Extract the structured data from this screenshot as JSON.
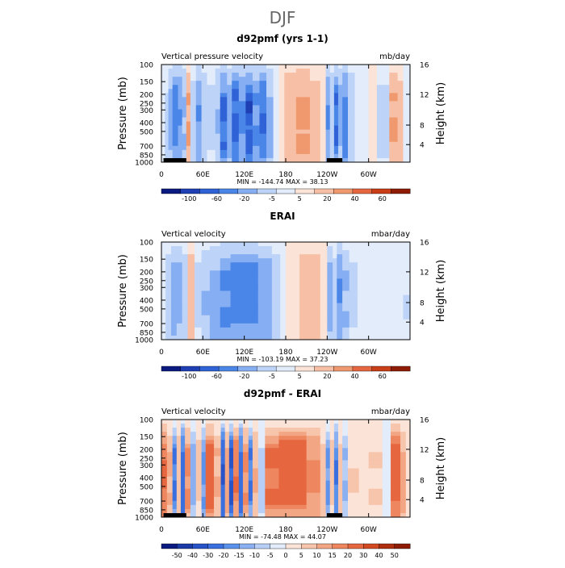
{
  "figure_title": "DJF",
  "colors": {
    "scale_main": [
      "#0a1a80",
      "#1f3fb5",
      "#2e62d6",
      "#4a86e8",
      "#86aef2",
      "#bdd4f8",
      "#e2ecfb",
      "#fbe3d7",
      "#f7c0a6",
      "#f0996f",
      "#e6673f",
      "#c93d17",
      "#8e1c05"
    ],
    "scale_diff": [
      "#0a1a80",
      "#1a3aa8",
      "#2752c8",
      "#3a6fe0",
      "#5a92ec",
      "#8ab0f2",
      "#b7cff7",
      "#e2ecfb",
      "#fbe3d7",
      "#f7c5ab",
      "#f3a684",
      "#ee8660",
      "#e6673f",
      "#d24a22",
      "#b02e10",
      "#8e1c05"
    ]
  },
  "chart_data": [
    {
      "type": "heatmap",
      "title": "d92pmf (yrs 1-1)",
      "left_label": "Vertical pressure velocity",
      "units": "mb/day",
      "ylabel": "Pressure (mb)",
      "y2label": "Height (km)",
      "x_ticks": [
        "0",
        "60E",
        "120E",
        "180",
        "120W",
        "60W"
      ],
      "y_ticks": [
        "100",
        "150",
        "200",
        "250",
        "300",
        "400",
        "500",
        "700",
        "850",
        "1000"
      ],
      "y2_ticks": [
        "16",
        "12",
        "8",
        "4"
      ],
      "stats": "MIN = -144.74   MAX =  38.13",
      "colorbar_labels": [
        "-100",
        "-60",
        "-20",
        "-5",
        "5",
        "20",
        "40",
        "60"
      ],
      "scale": "main",
      "mask_ranges": [
        [
          3,
          36
        ],
        [
          240,
          262
        ]
      ],
      "bands": [
        {
          "x0": 0,
          "x1": 5,
          "v": -3
        },
        {
          "x0": 5,
          "x1": 10,
          "v": -8
        },
        {
          "x0": 10,
          "x1": 16,
          "v": -30
        },
        {
          "x0": 16,
          "x1": 24,
          "v": -60
        },
        {
          "x0": 24,
          "x1": 30,
          "v": -45
        },
        {
          "x0": 30,
          "x1": 36,
          "v": -25
        },
        {
          "x0": 36,
          "x1": 42,
          "v": 25
        },
        {
          "x0": 42,
          "x1": 50,
          "v": -10
        },
        {
          "x0": 50,
          "x1": 58,
          "v": -45
        },
        {
          "x0": 58,
          "x1": 66,
          "v": -20
        },
        {
          "x0": 66,
          "x1": 78,
          "v": -8
        },
        {
          "x0": 78,
          "x1": 85,
          "v": -25
        },
        {
          "x0": 85,
          "x1": 95,
          "v": -70
        },
        {
          "x0": 95,
          "x1": 102,
          "v": -40
        },
        {
          "x0": 102,
          "x1": 112,
          "v": -80
        },
        {
          "x0": 112,
          "x1": 122,
          "v": -55
        },
        {
          "x0": 122,
          "x1": 132,
          "v": -85
        },
        {
          "x0": 132,
          "x1": 142,
          "v": -50
        },
        {
          "x0": 142,
          "x1": 152,
          "v": -70
        },
        {
          "x0": 152,
          "x1": 162,
          "v": -30
        },
        {
          "x0": 162,
          "x1": 170,
          "v": -5
        },
        {
          "x0": 170,
          "x1": 178,
          "v": 5
        },
        {
          "x0": 178,
          "x1": 195,
          "v": 18
        },
        {
          "x0": 195,
          "x1": 215,
          "v": 28
        },
        {
          "x0": 215,
          "x1": 230,
          "v": 15
        },
        {
          "x0": 230,
          "x1": 238,
          "v": 5
        },
        {
          "x0": 238,
          "x1": 244,
          "v": -50
        },
        {
          "x0": 244,
          "x1": 250,
          "v": -20
        },
        {
          "x0": 250,
          "x1": 256,
          "v": -70
        },
        {
          "x0": 256,
          "x1": 262,
          "v": -30
        },
        {
          "x0": 262,
          "x1": 270,
          "v": -60
        },
        {
          "x0": 270,
          "x1": 280,
          "v": -20
        },
        {
          "x0": 280,
          "x1": 290,
          "v": -5
        },
        {
          "x0": 290,
          "x1": 300,
          "v": -2
        },
        {
          "x0": 300,
          "x1": 312,
          "v": 3
        },
        {
          "x0": 312,
          "x1": 330,
          "v": -10
        },
        {
          "x0": 330,
          "x1": 342,
          "v": 25
        },
        {
          "x0": 342,
          "x1": 350,
          "v": 10
        },
        {
          "x0": 350,
          "x1": 360,
          "v": -5
        }
      ]
    },
    {
      "type": "heatmap",
      "title": "ERAI",
      "left_label": "Vertical velocity",
      "units": "mbar/day",
      "ylabel": "Pressure (mb)",
      "y2label": "Height (km)",
      "x_ticks": [
        "0",
        "60E",
        "120E",
        "180",
        "120W",
        "60W"
      ],
      "y_ticks": [
        "100",
        "150",
        "200",
        "250",
        "300",
        "400",
        "500",
        "700",
        "850",
        "1000"
      ],
      "y2_ticks": [
        "16",
        "12",
        "8",
        "4"
      ],
      "stats": "MIN = -103.19   MAX =  37.23",
      "colorbar_labels": [
        "-100",
        "-60",
        "-20",
        "-5",
        "5",
        "20",
        "40",
        "60"
      ],
      "scale": "main",
      "mask_ranges": [],
      "bands": [
        {
          "x0": 0,
          "x1": 6,
          "v": -3
        },
        {
          "x0": 6,
          "x1": 14,
          "v": -15
        },
        {
          "x0": 14,
          "x1": 22,
          "v": -40
        },
        {
          "x0": 22,
          "x1": 30,
          "v": -30
        },
        {
          "x0": 30,
          "x1": 38,
          "v": -12
        },
        {
          "x0": 38,
          "x1": 48,
          "v": 15
        },
        {
          "x0": 48,
          "x1": 58,
          "v": -8
        },
        {
          "x0": 58,
          "x1": 70,
          "v": -25
        },
        {
          "x0": 70,
          "x1": 85,
          "v": -35
        },
        {
          "x0": 85,
          "x1": 100,
          "v": -50
        },
        {
          "x0": 100,
          "x1": 140,
          "v": -60
        },
        {
          "x0": 140,
          "x1": 160,
          "v": -40
        },
        {
          "x0": 160,
          "x1": 172,
          "v": -15
        },
        {
          "x0": 172,
          "x1": 180,
          "v": -4
        },
        {
          "x0": 180,
          "x1": 200,
          "v": 4
        },
        {
          "x0": 200,
          "x1": 230,
          "v": 12
        },
        {
          "x0": 230,
          "x1": 240,
          "v": 5
        },
        {
          "x0": 240,
          "x1": 248,
          "v": -40
        },
        {
          "x0": 248,
          "x1": 254,
          "v": -10
        },
        {
          "x0": 254,
          "x1": 262,
          "v": -50
        },
        {
          "x0": 262,
          "x1": 272,
          "v": -25
        },
        {
          "x0": 272,
          "x1": 284,
          "v": -8
        },
        {
          "x0": 284,
          "x1": 300,
          "v": -4
        },
        {
          "x0": 300,
          "x1": 330,
          "v": -2
        },
        {
          "x0": 330,
          "x1": 350,
          "v": -3
        },
        {
          "x0": 350,
          "x1": 360,
          "v": -6
        }
      ]
    },
    {
      "type": "heatmap",
      "title": "d92pmf - ERAI",
      "left_label": "Vertical velocity",
      "units": "mbar/day",
      "ylabel": "Pressure (mb)",
      "y2label": "Height (km)",
      "x_ticks": [
        "0",
        "60E",
        "120E",
        "180",
        "120W",
        "60W"
      ],
      "y_ticks": [
        "100",
        "150",
        "200",
        "250",
        "300",
        "400",
        "500",
        "700",
        "850",
        "1000"
      ],
      "y2_ticks": [
        "16",
        "12",
        "8",
        "4"
      ],
      "stats": "MIN = -74.48   MAX =  44.07",
      "colorbar_labels": [
        "-50",
        "-40",
        "-30",
        "-20",
        "-15",
        "-10",
        "-5",
        "0",
        "5",
        "10",
        "15",
        "20",
        "30",
        "40",
        "50"
      ],
      "scale": "diff",
      "mask_ranges": [
        [
          3,
          36
        ],
        [
          240,
          262
        ]
      ],
      "bands": [
        {
          "x0": 0,
          "x1": 8,
          "v": 25
        },
        {
          "x0": 8,
          "x1": 16,
          "v": 12
        },
        {
          "x0": 16,
          "x1": 22,
          "v": -25
        },
        {
          "x0": 22,
          "x1": 28,
          "v": 10
        },
        {
          "x0": 28,
          "x1": 34,
          "v": -30
        },
        {
          "x0": 34,
          "x1": 42,
          "v": 20
        },
        {
          "x0": 42,
          "x1": 50,
          "v": -15
        },
        {
          "x0": 50,
          "x1": 58,
          "v": 8
        },
        {
          "x0": 58,
          "x1": 64,
          "v": -20
        },
        {
          "x0": 64,
          "x1": 76,
          "v": 30
        },
        {
          "x0": 76,
          "x1": 86,
          "v": 12
        },
        {
          "x0": 86,
          "x1": 92,
          "v": -35
        },
        {
          "x0": 92,
          "x1": 98,
          "v": 15
        },
        {
          "x0": 98,
          "x1": 104,
          "v": -40
        },
        {
          "x0": 104,
          "x1": 112,
          "v": 22
        },
        {
          "x0": 112,
          "x1": 118,
          "v": -30
        },
        {
          "x0": 118,
          "x1": 126,
          "v": 18
        },
        {
          "x0": 126,
          "x1": 132,
          "v": -25
        },
        {
          "x0": 132,
          "x1": 140,
          "v": 12
        },
        {
          "x0": 140,
          "x1": 150,
          "v": -8
        },
        {
          "x0": 150,
          "x1": 170,
          "v": 25
        },
        {
          "x0": 170,
          "x1": 210,
          "v": 30
        },
        {
          "x0": 210,
          "x1": 230,
          "v": 20
        },
        {
          "x0": 230,
          "x1": 238,
          "v": 10
        },
        {
          "x0": 238,
          "x1": 244,
          "v": -20
        },
        {
          "x0": 244,
          "x1": 250,
          "v": 8
        },
        {
          "x0": 250,
          "x1": 256,
          "v": -25
        },
        {
          "x0": 256,
          "x1": 262,
          "v": 10
        },
        {
          "x0": 262,
          "x1": 270,
          "v": -12
        },
        {
          "x0": 270,
          "x1": 286,
          "v": 6
        },
        {
          "x0": 286,
          "x1": 300,
          "v": 3
        },
        {
          "x0": 300,
          "x1": 320,
          "v": 6
        },
        {
          "x0": 320,
          "x1": 332,
          "v": -5
        },
        {
          "x0": 332,
          "x1": 346,
          "v": 30
        },
        {
          "x0": 346,
          "x1": 354,
          "v": 15
        },
        {
          "x0": 354,
          "x1": 360,
          "v": 5
        }
      ]
    }
  ]
}
